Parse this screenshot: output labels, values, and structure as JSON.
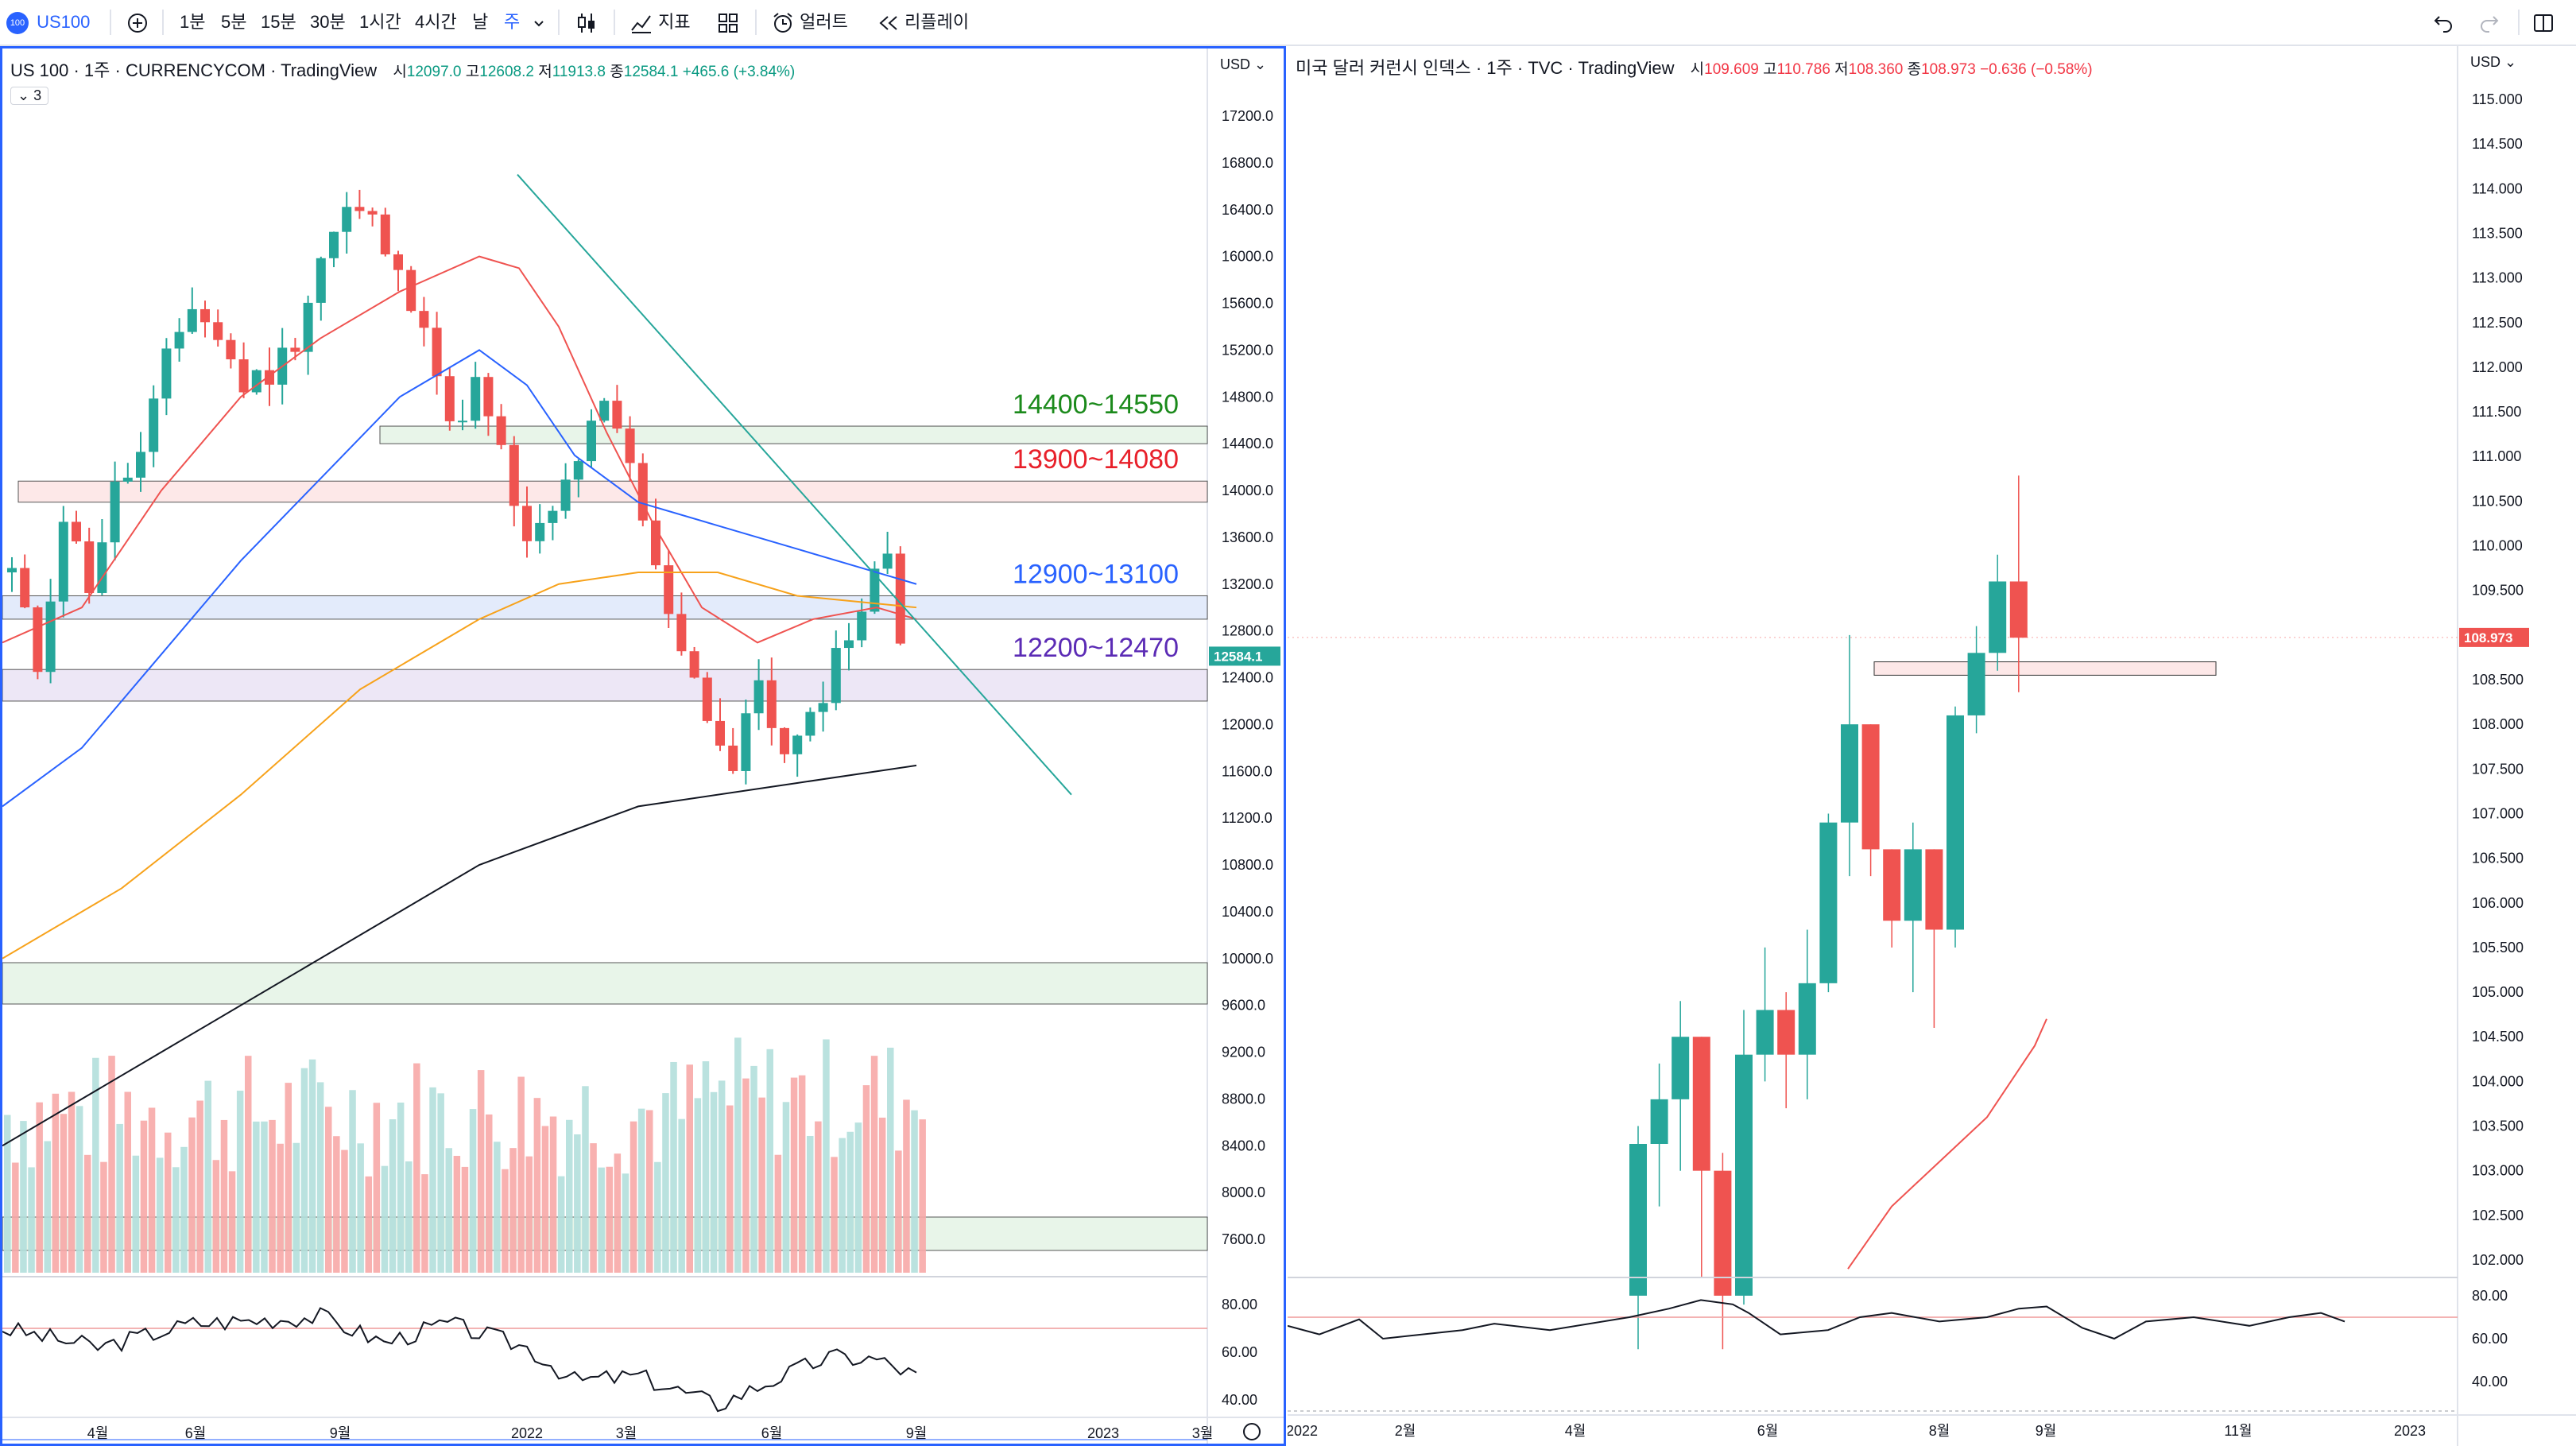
{
  "toolbar": {
    "symbol": "US100",
    "symbol_badge": "100",
    "intervals": [
      "1분",
      "5분",
      "15분",
      "30분",
      "1시간",
      "4시간",
      "날",
      "주"
    ],
    "active_interval": "주",
    "indicators_label": "지표",
    "alert_label": "얼러트",
    "replay_label": "리플레이"
  },
  "left_chart": {
    "legend_title": "US 100 · 1주 · CURRENCYCOM · TradingView",
    "open_label": "시",
    "open": "12097.0",
    "high_label": "고",
    "high": "12608.2",
    "low_label": "저",
    "low": "11913.8",
    "close_label": "종",
    "close": "12584.1",
    "change": "+465.6 (+3.84%)",
    "collapse_count": "3",
    "currency": "USD",
    "price_ticks": [
      "17200.0",
      "16800.0",
      "16400.0",
      "16000.0",
      "15600.0",
      "15200.0",
      "14800.0",
      "14400.0",
      "14000.0",
      "13600.0",
      "13200.0",
      "12800.0",
      "12400.0",
      "12000.0",
      "11600.0",
      "11200.0",
      "10800.0",
      "10400.0",
      "10000.0",
      "9600.0",
      "9200.0",
      "8800.0",
      "8400.0",
      "8000.0",
      "7600.0"
    ],
    "price_badge": "12584.1",
    "rsi_ticks": [
      "80.00",
      "60.00",
      "40.00"
    ],
    "time_labels": [
      "4월",
      "6월",
      "9월",
      "2022",
      "3월",
      "6월",
      "9월",
      "2023",
      "3월"
    ],
    "zones": [
      {
        "label": "14400~14550",
        "color": "#1b8a1b",
        "low": 14400,
        "high": 14550
      },
      {
        "label": "13900~14080",
        "color": "#e8202a",
        "low": 13900,
        "high": 14080
      },
      {
        "label": "12900~13100",
        "color": "#2962ff",
        "low": 12900,
        "high": 13100
      },
      {
        "label": "12200~12470",
        "color": "#5b2bb5",
        "low": 12200,
        "high": 12470
      }
    ]
  },
  "right_chart": {
    "legend_title": "미국 달러 커런시 인덱스 · 1주 · TVC · TradingView",
    "open_label": "시",
    "open": "109.609",
    "high_label": "고",
    "high": "110.786",
    "low_label": "저",
    "low": "108.360",
    "close_label": "종",
    "close": "108.973",
    "change": "−0.636 (−0.58%)",
    "currency": "USD",
    "price_ticks": [
      "115.000",
      "114.500",
      "114.000",
      "113.500",
      "113.000",
      "112.500",
      "112.000",
      "111.500",
      "111.000",
      "110.500",
      "110.000",
      "109.500",
      "109.000",
      "108.500",
      "108.000",
      "107.500",
      "107.000",
      "106.500",
      "106.000",
      "105.500",
      "105.000",
      "104.500",
      "104.000",
      "103.500",
      "103.000",
      "102.500",
      "102.000"
    ],
    "price_badge": "108.973",
    "rsi_ticks": [
      "80.00",
      "60.00",
      "40.00"
    ],
    "time_labels": [
      "2022",
      "2월",
      "4월",
      "6월",
      "8월",
      "9월",
      "11월",
      "2023"
    ]
  },
  "colors": {
    "up": "#26a69a",
    "down": "#ef5350",
    "accent": "#2962ff"
  }
}
